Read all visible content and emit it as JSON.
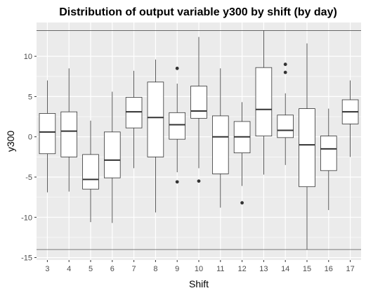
{
  "chart_data": {
    "type": "boxplot",
    "title": "Distribution of output variable y300 by shift (by day)",
    "xlabel": "Shift",
    "ylabel": "y300",
    "ylim": [
      -15.3,
      14.2
    ],
    "y_ticks": [
      -15,
      -10,
      -5,
      0,
      5,
      10
    ],
    "grid": true,
    "background_color": "#ebebeb",
    "grid_color": "#ffffff",
    "box_fill": "#ffffff",
    "line_color": "#333333",
    "reference_lines": [
      13.2,
      -14.0
    ],
    "categories": [
      "3",
      "4",
      "5",
      "6",
      "7",
      "8",
      "9",
      "10",
      "11",
      "12",
      "13",
      "14",
      "15",
      "16",
      "17"
    ],
    "boxes": [
      {
        "category": "3",
        "whisker_low": -6.9,
        "q1": -2.1,
        "median": 0.6,
        "q3": 2.9,
        "whisker_high": 7.0,
        "outliers": []
      },
      {
        "category": "4",
        "whisker_low": -6.8,
        "q1": -2.5,
        "median": 0.7,
        "q3": 3.1,
        "whisker_high": 8.5,
        "outliers": []
      },
      {
        "category": "5",
        "whisker_low": -10.6,
        "q1": -6.5,
        "median": -5.3,
        "q3": -2.2,
        "whisker_high": 2.0,
        "outliers": []
      },
      {
        "category": "6",
        "whisker_low": -10.7,
        "q1": -5.1,
        "median": -2.9,
        "q3": 0.6,
        "whisker_high": 5.6,
        "outliers": []
      },
      {
        "category": "7",
        "whisker_low": -3.9,
        "q1": 1.1,
        "median": 3.1,
        "q3": 4.9,
        "whisker_high": 8.2,
        "outliers": []
      },
      {
        "category": "8",
        "whisker_low": -9.4,
        "q1": -2.5,
        "median": 2.4,
        "q3": 6.8,
        "whisker_high": 9.6,
        "outliers": []
      },
      {
        "category": "9",
        "whisker_low": -4.4,
        "q1": -0.3,
        "median": 1.5,
        "q3": 3.0,
        "whisker_high": 6.6,
        "outliers": [
          8.5,
          -5.6
        ]
      },
      {
        "category": "10",
        "whisker_low": -3.9,
        "q1": 2.3,
        "median": 3.2,
        "q3": 6.3,
        "whisker_high": 12.4,
        "outliers": [
          -5.5
        ]
      },
      {
        "category": "11",
        "whisker_low": -8.8,
        "q1": -4.6,
        "median": 0.0,
        "q3": 2.6,
        "whisker_high": 8.5,
        "outliers": []
      },
      {
        "category": "12",
        "whisker_low": -6.1,
        "q1": -2.0,
        "median": 0.0,
        "q3": 1.9,
        "whisker_high": 4.3,
        "outliers": [
          -8.2
        ]
      },
      {
        "category": "13",
        "whisker_low": -4.7,
        "q1": 0.1,
        "median": 3.4,
        "q3": 8.6,
        "whisker_high": 13.2,
        "outliers": []
      },
      {
        "category": "14",
        "whisker_low": -3.5,
        "q1": -0.1,
        "median": 0.8,
        "q3": 2.7,
        "whisker_high": 5.4,
        "outliers": [
          9.0,
          8.0
        ]
      },
      {
        "category": "15",
        "whisker_low": -14.0,
        "q1": -6.2,
        "median": -1.0,
        "q3": 3.5,
        "whisker_high": 11.6,
        "outliers": []
      },
      {
        "category": "16",
        "whisker_low": -9.1,
        "q1": -4.2,
        "median": -1.5,
        "q3": 0.1,
        "whisker_high": 3.5,
        "outliers": []
      },
      {
        "category": "17",
        "whisker_low": -2.5,
        "q1": 1.6,
        "median": 3.1,
        "q3": 4.6,
        "whisker_high": 7.0,
        "outliers": []
      }
    ]
  }
}
